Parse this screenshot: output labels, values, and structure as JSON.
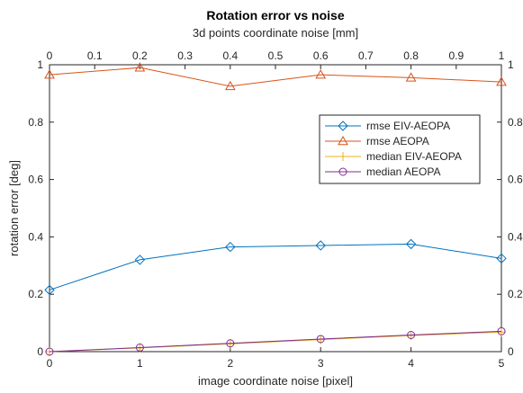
{
  "chart_data": {
    "type": "line",
    "title": "Rotation error vs noise",
    "xlabel": "image coordinate noise [pixel]",
    "ylabel": "rotation error [deg]",
    "x2label": "3d points coordinate noise [mm]",
    "xlim": [
      0,
      5
    ],
    "ylim": [
      0,
      1
    ],
    "x2lim": [
      0,
      1
    ],
    "x_ticks": [
      0,
      1,
      2,
      3,
      4,
      5
    ],
    "x_tick_labels": [
      "0",
      "1",
      "2",
      "3",
      "4",
      "5"
    ],
    "x2_ticks": [
      0,
      0.1,
      0.2,
      0.3,
      0.4,
      0.5,
      0.6,
      0.7,
      0.8,
      0.9,
      1
    ],
    "x2_tick_labels": [
      "0",
      "0.1",
      "0.2",
      "0.3",
      "0.4",
      "0.5",
      "0.6",
      "0.7",
      "0.8",
      "0.9",
      "1"
    ],
    "y_ticks": [
      0,
      0.2,
      0.4,
      0.6,
      0.8,
      1
    ],
    "y_tick_labels": [
      "0",
      "0.2",
      "0.4",
      "0.6",
      "0.8",
      "1"
    ],
    "grid": false,
    "legend_position": "right-center",
    "x": [
      0,
      1,
      2,
      3,
      4,
      5
    ],
    "series": [
      {
        "name": "rmse EIV-AEOPA",
        "marker": "diamond",
        "color": "#0072BD",
        "values": [
          0.215,
          0.32,
          0.365,
          0.37,
          0.375,
          0.325
        ]
      },
      {
        "name": "rmse AEOPA",
        "marker": "triangle",
        "color": "#D95319",
        "values": [
          0.965,
          0.99,
          0.925,
          0.965,
          0.955,
          0.94
        ]
      },
      {
        "name": "median EIV-AEOPA",
        "marker": "plus",
        "color": "#EDB120",
        "values": [
          0.0,
          0.013,
          0.027,
          0.042,
          0.056,
          0.068
        ]
      },
      {
        "name": "median AEOPA",
        "marker": "circle",
        "color": "#7E2F8E",
        "values": [
          0.0,
          0.014,
          0.029,
          0.044,
          0.058,
          0.071
        ]
      }
    ]
  }
}
